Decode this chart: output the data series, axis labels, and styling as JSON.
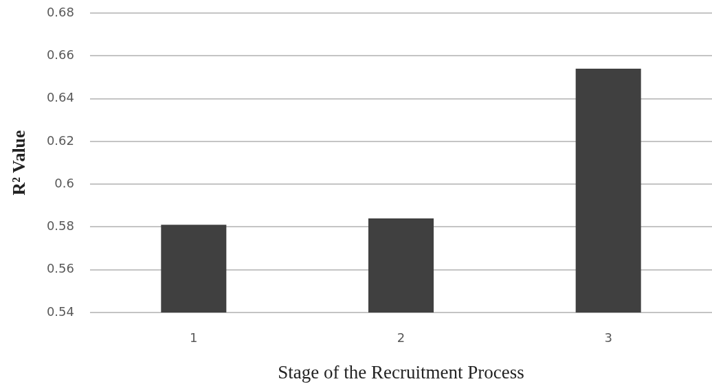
{
  "chart_data": {
    "type": "bar",
    "xlabel": "Stage of the Recruitment Process",
    "ylabel": "R² Value",
    "categories": [
      "1",
      "2",
      "3"
    ],
    "values": [
      0.581,
      0.584,
      0.654
    ],
    "color": "#404040",
    "ylim": [
      0.54,
      0.68
    ],
    "yticks": [
      0.54,
      0.56,
      0.58,
      0.6,
      0.62,
      0.64,
      0.66,
      0.68
    ],
    "grid": "y"
  }
}
